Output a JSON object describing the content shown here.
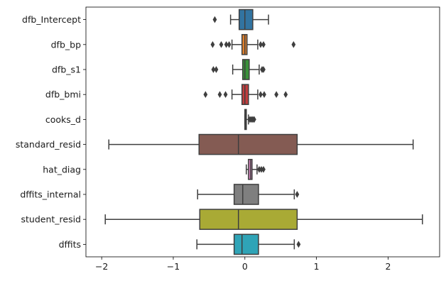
{
  "chart_data": {
    "type": "boxplot",
    "orientation": "horizontal",
    "title": "",
    "xlabel": "",
    "ylabel": "",
    "xlim": [
      -2.22,
      2.72
    ],
    "xticks": [
      -2,
      -1,
      0,
      1,
      2
    ],
    "xtick_labels": [
      "−2",
      "−1",
      "0",
      "1",
      "2"
    ],
    "grid": false,
    "categories": [
      "dfb_Intercept",
      "dfb_bp",
      "dfb_s1",
      "dfb_bmi",
      "cooks_d",
      "standard_resid",
      "hat_diag",
      "dffits_internal",
      "student_resid",
      "dffits"
    ],
    "series": [
      {
        "label": "dfb_Intercept",
        "color": "#3274a1",
        "whisker_low": -0.2,
        "q1": -0.08,
        "median": 0.0,
        "q3": 0.11,
        "whisker_high": 0.33,
        "outliers": [
          -0.42
        ]
      },
      {
        "label": "dfb_bp",
        "color": "#e1812c",
        "whisker_low": -0.18,
        "q1": -0.04,
        "median": 0.0,
        "q3": 0.03,
        "whisker_high": 0.18,
        "outliers": [
          -0.45,
          -0.33,
          -0.26,
          -0.22,
          0.22,
          0.26,
          0.68
        ]
      },
      {
        "label": "dfb_s1",
        "color": "#3a923a",
        "whisker_low": -0.17,
        "q1": -0.03,
        "median": 0.0,
        "q3": 0.06,
        "whisker_high": 0.2,
        "outliers": [
          -0.44,
          -0.4,
          0.24,
          0.26
        ]
      },
      {
        "label": "dfb_bmi",
        "color": "#c03d3e",
        "whisker_low": -0.18,
        "q1": -0.04,
        "median": 0.0,
        "q3": 0.05,
        "whisker_high": 0.18,
        "outliers": [
          -0.55,
          -0.35,
          -0.27,
          0.22,
          0.27,
          0.44,
          0.57
        ]
      },
      {
        "label": "cooks_d",
        "color": "#9372b2",
        "whisker_low": 0.0,
        "q1": 0.0,
        "median": 0.01,
        "q3": 0.02,
        "whisker_high": 0.05,
        "outliers": [
          0.07,
          0.09,
          0.11,
          0.13
        ]
      },
      {
        "label": "standard_resid",
        "color": "#845b53",
        "whisker_low": -1.9,
        "q1": -0.64,
        "median": -0.09,
        "q3": 0.73,
        "whisker_high": 2.35,
        "outliers": []
      },
      {
        "label": "hat_diag",
        "color": "#d684bd",
        "whisker_low": 0.02,
        "q1": 0.05,
        "median": 0.08,
        "q3": 0.1,
        "whisker_high": 0.17,
        "outliers": [
          0.2,
          0.23,
          0.26
        ]
      },
      {
        "label": "dffits_internal",
        "color": "#7f7f7f",
        "whisker_low": -0.66,
        "q1": -0.15,
        "median": -0.03,
        "q3": 0.19,
        "whisker_high": 0.69,
        "outliers": [
          0.73
        ]
      },
      {
        "label": "student_resid",
        "color": "#a9aa35",
        "whisker_low": -1.95,
        "q1": -0.63,
        "median": -0.09,
        "q3": 0.73,
        "whisker_high": 2.48,
        "outliers": []
      },
      {
        "label": "dffits",
        "color": "#2fa4b7",
        "whisker_low": -0.67,
        "q1": -0.15,
        "median": -0.04,
        "q3": 0.19,
        "whisker_high": 0.69,
        "outliers": [
          0.75
        ]
      }
    ]
  }
}
